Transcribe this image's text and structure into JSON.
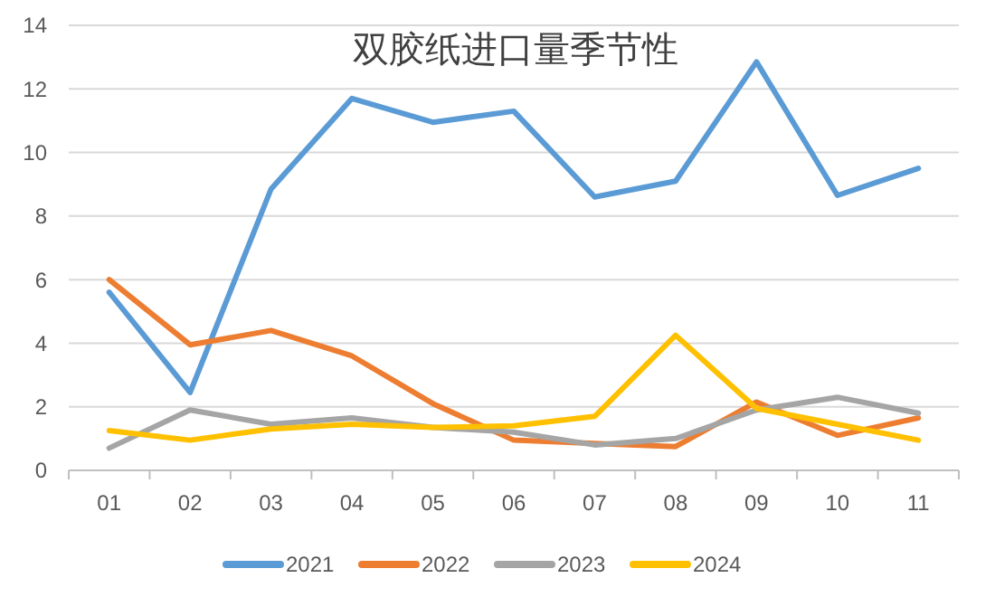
{
  "chart_data": {
    "type": "line",
    "title": "双胶纸进口量季节性",
    "categories": [
      "01",
      "02",
      "03",
      "04",
      "05",
      "06",
      "07",
      "08",
      "09",
      "10",
      "11"
    ],
    "series": [
      {
        "name": "2021",
        "color": "#5b9bd5",
        "values": [
          5.6,
          2.45,
          8.85,
          11.7,
          10.95,
          11.3,
          8.6,
          9.1,
          12.85,
          8.65,
          9.5
        ]
      },
      {
        "name": "2022",
        "color": "#ed7d31",
        "values": [
          6.0,
          3.95,
          4.4,
          3.6,
          2.1,
          0.95,
          0.85,
          0.75,
          2.15,
          1.1,
          1.65
        ]
      },
      {
        "name": "2023",
        "color": "#a5a5a5",
        "values": [
          0.7,
          1.9,
          1.45,
          1.65,
          1.35,
          1.2,
          0.8,
          1.0,
          1.9,
          2.3,
          1.8
        ]
      },
      {
        "name": "2024",
        "color": "#ffc000",
        "values": [
          1.25,
          0.95,
          1.3,
          1.45,
          1.35,
          1.4,
          1.7,
          4.25,
          1.95,
          1.45,
          0.95
        ]
      }
    ],
    "ylim": [
      0,
      14
    ],
    "yticks": [
      0,
      2,
      4,
      6,
      8,
      10,
      12,
      14
    ],
    "grid": "y",
    "legend": "bottom",
    "marker": "none",
    "line_style": "solid"
  }
}
